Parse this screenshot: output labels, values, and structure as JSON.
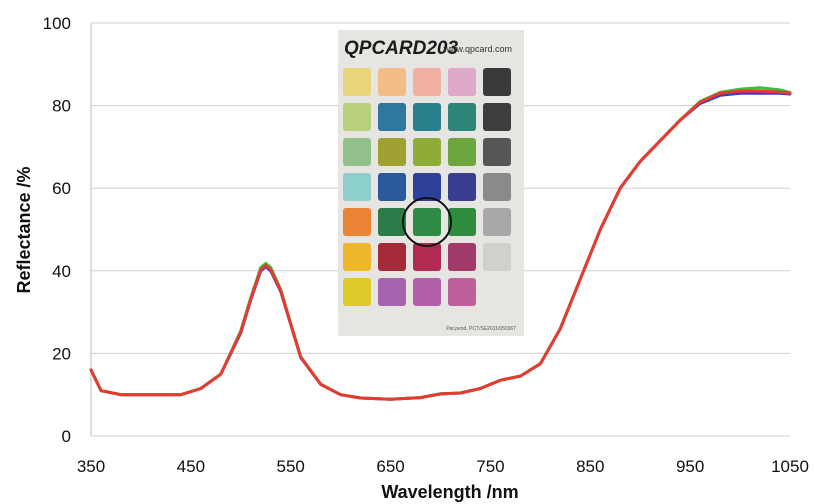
{
  "chart_data": {
    "type": "line",
    "title": "",
    "xlabel": "Wavelength /nm",
    "ylabel": "Reflectance /%",
    "xlim": [
      350,
      1050
    ],
    "ylim": [
      0,
      100
    ],
    "x_ticks": [
      "350",
      "450",
      "550",
      "650",
      "750",
      "850",
      "950",
      "1050"
    ],
    "y_ticks": [
      "0",
      "20",
      "40",
      "60",
      "80",
      "100"
    ],
    "grid": "horizontal",
    "x": [
      350,
      360,
      380,
      400,
      420,
      440,
      460,
      480,
      500,
      510,
      520,
      525,
      530,
      540,
      550,
      560,
      580,
      600,
      620,
      650,
      680,
      700,
      720,
      740,
      760,
      780,
      800,
      820,
      840,
      860,
      880,
      900,
      920,
      940,
      960,
      980,
      1000,
      1020,
      1040,
      1050
    ],
    "series": [
      {
        "color": "#2b3fd6",
        "values": [
          16,
          11,
          10,
          10,
          10,
          10,
          11.5,
          15,
          25,
          33,
          40,
          41,
          40,
          35,
          27,
          19,
          12.5,
          10,
          9.2,
          8.9,
          9.3,
          10.2,
          10.4,
          11.5,
          13.5,
          14.5,
          17.5,
          26,
          38,
          50,
          60,
          66.5,
          71.5,
          76.5,
          80.5,
          82.5,
          83,
          83,
          83,
          82.8
        ]
      },
      {
        "color": "#3cbf3c",
        "values": [
          16,
          11,
          10,
          10,
          10,
          10,
          11.5,
          15,
          25.5,
          33.5,
          40.8,
          41.8,
          40.8,
          35.5,
          27.3,
          19.2,
          12.6,
          10,
          9.2,
          8.9,
          9.3,
          10.2,
          10.4,
          11.5,
          13.5,
          14.5,
          17.5,
          26,
          38,
          50,
          60,
          66.5,
          71.5,
          76.5,
          81,
          83.2,
          84,
          84.3,
          83.8,
          83.2
        ]
      },
      {
        "color": "#e83a2e",
        "values": [
          16,
          11,
          10,
          10,
          10,
          10,
          11.5,
          15,
          25.2,
          33.2,
          40.3,
          41.3,
          40.3,
          35.2,
          27.1,
          19.1,
          12.5,
          10,
          9.2,
          8.9,
          9.3,
          10.2,
          10.4,
          11.5,
          13.5,
          14.5,
          17.5,
          26,
          38,
          50,
          60,
          66.5,
          71.5,
          76.5,
          80.8,
          83,
          83.5,
          83.5,
          83.3,
          83
        ]
      }
    ]
  },
  "card": {
    "brand": "QPCARD203",
    "url": "www.qpcard.com",
    "footer": "Pat.pend. PCT/SE2011/050367",
    "highlighted_patch": {
      "row": 4,
      "col": 2
    },
    "swatches": [
      [
        "#e8d57a",
        "#f2bd86",
        "#f0b0a2",
        "#dfa8c8",
        "#3a3a3a"
      ],
      [
        "#b8cf7c",
        "#2e78a0",
        "#2a7f8c",
        "#2f8478",
        "#3e3e3e"
      ],
      [
        "#93c08a",
        "#9fa233",
        "#8fac38",
        "#6da63e",
        "#565656"
      ],
      [
        "#8ccfcb",
        "#2b5a9c",
        "#2e3f9a",
        "#3a3d8f",
        "#8a8a8a"
      ],
      [
        "#ea8434",
        "#2c7a4a",
        "#2e8a44",
        "#2f8b3e",
        "#a8a8a8"
      ],
      [
        "#efb72b",
        "#a52a3a",
        "#b12a50",
        "#a23a6a",
        "#d2d0cc"
      ],
      [
        "#dccb2a",
        "#a565ae",
        "#b05fa8",
        "#c0609a",
        ""
      ]
    ]
  }
}
